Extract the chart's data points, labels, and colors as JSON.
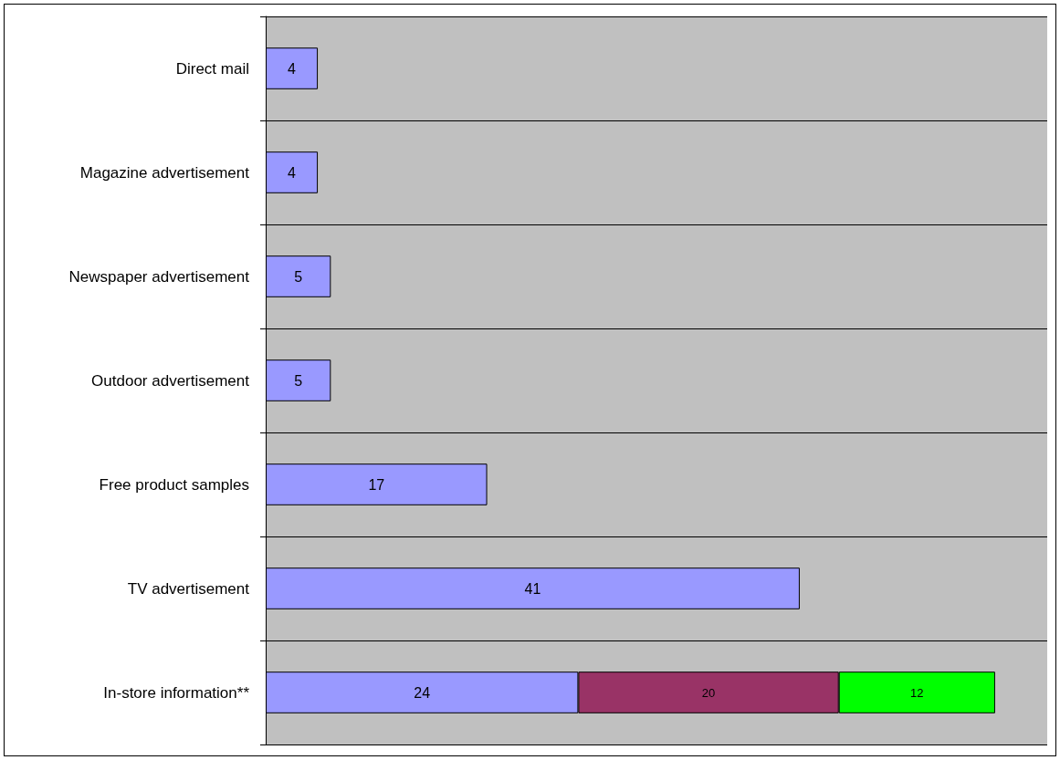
{
  "chart_data": {
    "type": "bar",
    "orientation": "horizontal",
    "stacked": true,
    "data_labels": true,
    "grid": "y",
    "categories": [
      "Direct mail",
      "Magazine advertisement",
      "Newspaper advertisement",
      "Outdoor advertisement",
      "Free product samples",
      "TV advertisement",
      "In-store information**"
    ],
    "series": [
      {
        "color": "#9999ff",
        "values": [
          4,
          4,
          5,
          5,
          17,
          41,
          24
        ]
      },
      {
        "color": "#993366",
        "values": [
          null,
          null,
          null,
          null,
          null,
          null,
          20
        ]
      },
      {
        "color": "#00ff00",
        "values": [
          null,
          null,
          null,
          null,
          null,
          null,
          12
        ]
      }
    ]
  }
}
